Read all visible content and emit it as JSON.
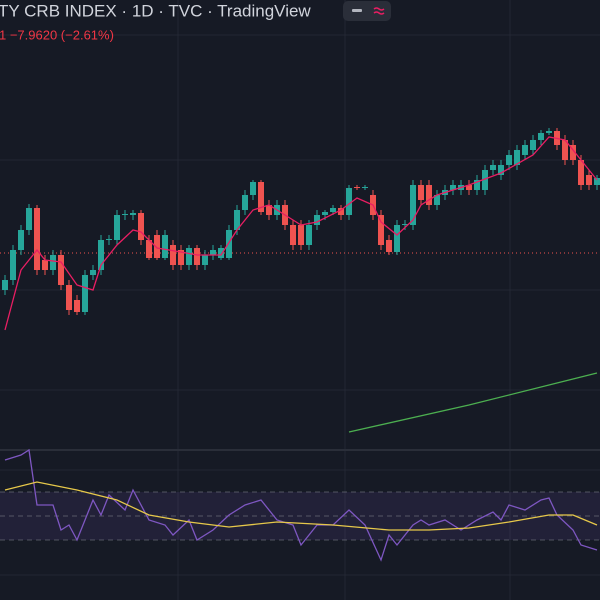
{
  "chart_data": {
    "type": "candlestick",
    "title": "TY CRB INDEX · 1D · TVC · TradingView",
    "change_text": "1 −7.9620 (−2.61%)",
    "xlim": [
      -0.625,
      74.375
    ],
    "ylim": [
      246,
      336
    ],
    "up_color": "#26a69a",
    "down_color": "#ef5350",
    "price_line": 285.4,
    "candles": {
      "open": [
        278,
        280,
        286,
        290,
        294.4,
        284,
        282,
        285,
        279,
        276,
        273.6,
        281,
        282,
        288,
        288,
        293,
        293,
        293.4,
        288,
        289,
        284.4,
        287,
        286,
        283,
        286.4,
        283,
        285,
        284.4,
        284.4,
        290,
        294,
        297,
        299.6,
        295,
        293,
        295,
        291,
        291,
        287,
        291,
        293,
        293.6,
        294.4,
        293,
        298.6,
        298.4,
        297,
        293,
        288,
        285.6,
        291,
        291,
        299,
        299,
        295,
        297,
        298,
        298,
        299,
        298,
        298,
        302,
        301,
        303,
        303,
        305,
        306,
        308,
        309.4,
        309.8,
        308,
        307,
        304,
        301,
        299
      ],
      "high": [
        281,
        287,
        291,
        295.2,
        295,
        285,
        286,
        286,
        280,
        277,
        282,
        283,
        289,
        289,
        294,
        294,
        294,
        294,
        289,
        290,
        290,
        288,
        287,
        287,
        287,
        286,
        287,
        287,
        291,
        295,
        298,
        300,
        300,
        296,
        296,
        296,
        292,
        292,
        292,
        294,
        294,
        295,
        295,
        299,
        299,
        299,
        298,
        294,
        289,
        292,
        292,
        300,
        300,
        300,
        298,
        299,
        300,
        300,
        300,
        301,
        303,
        304,
        304,
        306,
        307,
        308,
        309,
        310,
        310.4,
        310.4,
        309,
        308,
        305,
        302,
        301
      ],
      "low": [
        277,
        279,
        285,
        289,
        281,
        281,
        281,
        278,
        273,
        273,
        273,
        280,
        281,
        287,
        287,
        292,
        292,
        287,
        284,
        284,
        284,
        282,
        282,
        282,
        282,
        282,
        284,
        284,
        284,
        289,
        293,
        296,
        293,
        292,
        292,
        290,
        286,
        286,
        286,
        290,
        292,
        293,
        292,
        292,
        298,
        298,
        292,
        286,
        285,
        285,
        290,
        290,
        295,
        294,
        294,
        296,
        297,
        297,
        297,
        297,
        297,
        301,
        300,
        302,
        302,
        304,
        305,
        307,
        309,
        306,
        303,
        303,
        298,
        298,
        298
      ],
      "close": [
        280,
        286,
        290,
        294.4,
        282,
        282,
        285,
        279,
        274,
        273.6,
        281,
        282,
        288,
        288.2,
        293,
        293.2,
        293.4,
        288,
        284.4,
        284.4,
        289,
        283,
        283,
        286.4,
        283,
        285,
        286,
        286.4,
        290,
        294,
        297,
        299.6,
        293.6,
        293,
        295,
        291,
        287,
        287,
        291,
        293,
        293.6,
        294.4,
        293,
        298.4,
        298.4,
        298.6,
        293,
        287,
        285.6,
        291,
        291.2,
        299,
        296,
        295,
        297,
        298,
        299,
        299,
        298,
        300,
        302,
        303,
        303,
        305,
        306,
        307,
        308,
        309.4,
        309.8,
        307,
        304,
        304,
        299,
        299,
        300.4
      ]
    },
    "lines": [
      {
        "color": "#e91e63",
        "x": [
          0,
          1,
          2,
          4,
          5,
          7,
          9,
          11,
          12,
          14,
          16,
          17,
          19,
          22,
          24,
          27,
          29,
          31,
          33,
          35,
          37,
          39,
          42,
          44,
          46,
          47,
          49,
          51,
          52,
          54,
          58,
          62,
          66,
          68,
          70,
          72,
          74
        ],
        "values": [
          270,
          276,
          282,
          286,
          284,
          283.6,
          279,
          278,
          283,
          287,
          290,
          289.6,
          286.4,
          285.6,
          285,
          285,
          290,
          294,
          295,
          293,
          291,
          291.6,
          294,
          296.4,
          295,
          291.6,
          289,
          292,
          295,
          297,
          299,
          301.4,
          305,
          308.6,
          308,
          304,
          300
        ]
      },
      {
        "color": "#4caf50",
        "x": [
          43,
          58,
          74
        ],
        "values": [
          249.6,
          255,
          261.4
        ]
      }
    ],
    "rsi": {
      "ylim": [
        -20,
        105
      ],
      "bands": [
        70,
        50,
        30
      ],
      "band_color": "#7e57c2",
      "series": [
        {
          "color": "#7e57c2",
          "x": [
            0,
            2,
            3,
            4,
            6,
            7,
            8,
            9,
            11,
            12,
            13,
            15,
            16,
            18,
            20,
            21,
            23,
            24,
            26,
            28,
            30,
            32,
            34,
            36,
            37,
            39,
            41,
            43,
            45,
            47,
            48,
            49,
            51,
            52,
            53,
            55,
            57,
            59,
            61,
            62,
            63,
            65,
            67,
            68,
            69,
            71,
            72,
            74
          ],
          "values": [
            96.7,
            100.8,
            105,
            59.2,
            59.2,
            38.3,
            42.5,
            30,
            63.3,
            50.8,
            67.5,
            55,
            71.7,
            46.7,
            42.5,
            34.2,
            46.7,
            30,
            38.3,
            50.8,
            59.2,
            63.3,
            46.7,
            42.5,
            25.8,
            42.5,
            42.5,
            55,
            42.5,
            13.3,
            34.2,
            25.8,
            42.5,
            46.7,
            42.5,
            46.7,
            38.3,
            46.7,
            53.3,
            46.7,
            59.2,
            55,
            63.3,
            65,
            50.8,
            38.3,
            25.8,
            21.7
          ]
        },
        {
          "color": "#e6c84a",
          "x": [
            0,
            4,
            9,
            14,
            18,
            23,
            28,
            34,
            41,
            48,
            53,
            58,
            63,
            68,
            71,
            74
          ],
          "values": [
            71.7,
            78.3,
            71.7,
            63.3,
            50.8,
            45,
            40.8,
            45,
            42.5,
            38.3,
            38.3,
            40,
            45,
            50.8,
            50.8,
            42.5
          ]
        }
      ]
    }
  }
}
